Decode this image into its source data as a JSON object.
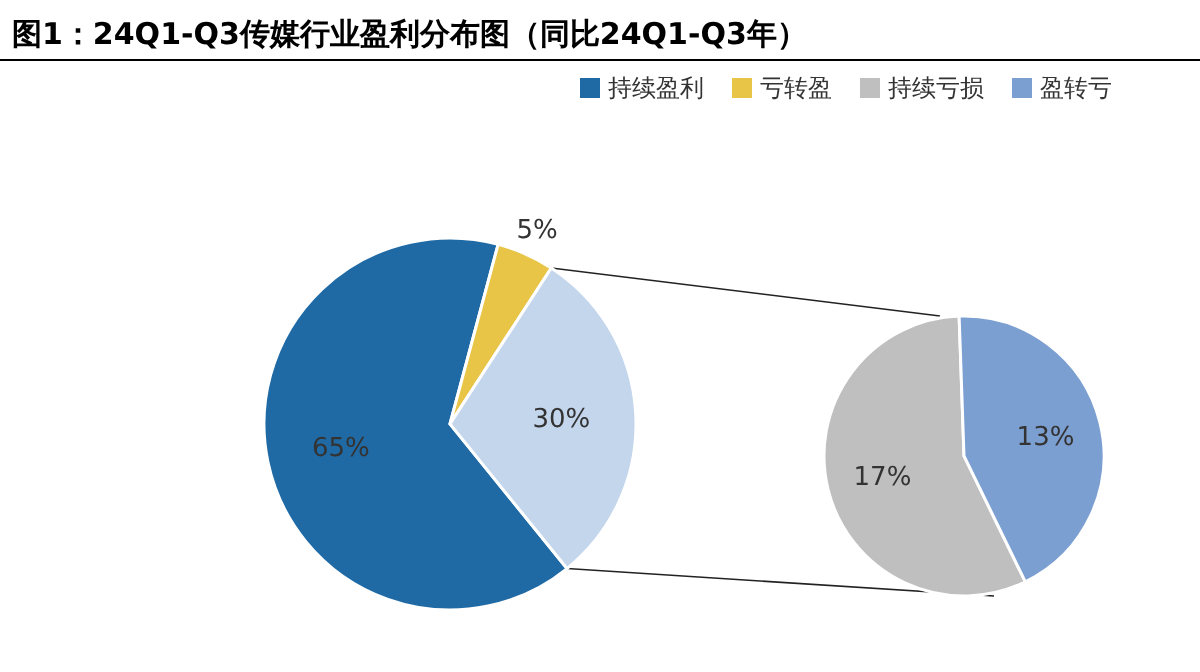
{
  "chart_data": [
    {
      "type": "pie",
      "title": "图1：24Q1-Q3传媒行业盈利分布图（同比24Q1-Q3年）",
      "categories": [
        "持续盈利",
        "亏转盈",
        null
      ],
      "values": [
        65,
        5,
        30
      ],
      "value_labels": [
        "65%",
        "5%",
        "30%"
      ],
      "colors": [
        "#1f6aa5",
        "#e8c547",
        "#c3d6ec"
      ],
      "legend": "top"
    },
    {
      "type": "pie",
      "categories": [
        "持续亏损",
        "盈转亏"
      ],
      "values": [
        17,
        13
      ],
      "value_labels": [
        "17%",
        "13%"
      ],
      "colors": [
        "#bfbfbf",
        "#7c9fd2"
      ],
      "legend": "top"
    }
  ]
}
